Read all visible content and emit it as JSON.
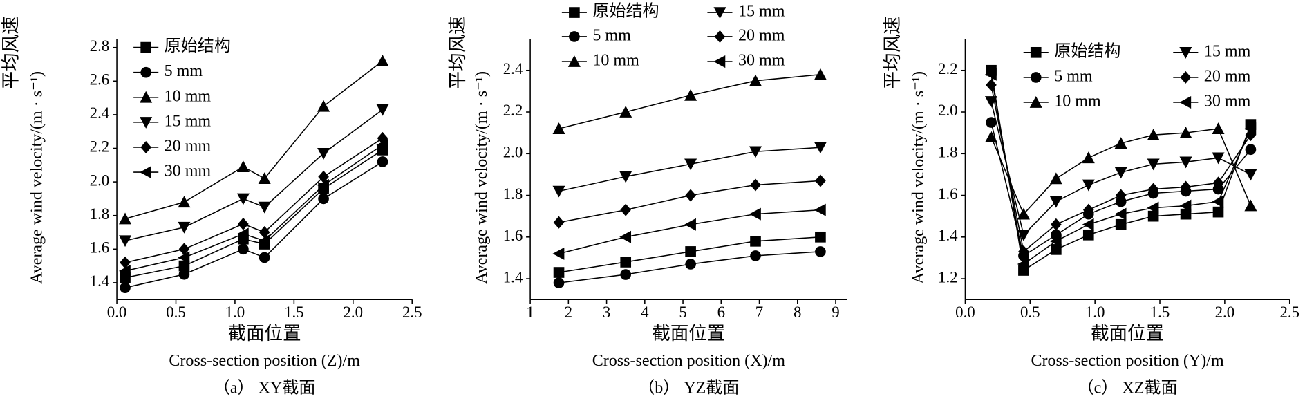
{
  "chart_data": [
    {
      "type": "line",
      "y_label_cn": "平均风速",
      "y_label": "Average wind velocity/(m · s⁻¹)",
      "x_label_cn": "截面位置",
      "x_label": "Cross-section position (Z)/m",
      "caption": "（a） XY截面",
      "x": [
        0.07,
        0.57,
        1.07,
        1.25,
        1.75,
        2.25
      ],
      "xlim": [
        0,
        2.5
      ],
      "xticks": [
        {
          "value": 0,
          "label": "0.0"
        },
        0.5,
        {
          "value": 1,
          "label": "1.0"
        },
        1.5,
        {
          "value": 2,
          "label": "2.0"
        },
        2.5
      ],
      "ylim": [
        1.3,
        2.85
      ],
      "yticks": [
        1.4,
        1.6,
        1.8,
        {
          "value": 2,
          "label": "2.0"
        },
        2.2,
        2.4,
        2.6,
        2.8
      ],
      "legend_columns": 1,
      "series": [
        {
          "name": "原始结构",
          "marker": "square",
          "color": "#000000",
          "values": [
            1.43,
            1.5,
            1.66,
            1.63,
            1.96,
            2.19
          ]
        },
        {
          "name": "5 mm",
          "marker": "circle",
          "color": "#000000",
          "values": [
            1.37,
            1.45,
            1.6,
            1.55,
            1.9,
            2.12
          ]
        },
        {
          "name": "10 mm",
          "marker": "triangle-up",
          "color": "#000000",
          "values": [
            1.78,
            1.88,
            2.09,
            2.02,
            2.45,
            2.72
          ]
        },
        {
          "name": "15 mm",
          "marker": "triangle-down",
          "color": "#000000",
          "values": [
            1.65,
            1.73,
            1.9,
            1.85,
            2.17,
            2.43
          ]
        },
        {
          "name": "20 mm",
          "marker": "diamond",
          "color": "#000000",
          "values": [
            1.52,
            1.6,
            1.75,
            1.7,
            2.03,
            2.26
          ]
        },
        {
          "name": "30 mm",
          "marker": "triangle-left",
          "color": "#000000",
          "values": [
            1.47,
            1.55,
            1.69,
            1.65,
            1.98,
            2.22
          ]
        }
      ]
    },
    {
      "type": "line",
      "y_label_cn": "平均风速",
      "y_label": "Average wind velocity/(m · s⁻¹)",
      "x_label_cn": "截面位置",
      "x_label": "Cross-section position (X)/m",
      "caption": "（b） YZ截面",
      "x": [
        1.75,
        3.5,
        5.2,
        6.9,
        8.6
      ],
      "xlim": [
        1,
        9.3
      ],
      "xticks": [
        1,
        2,
        3,
        4,
        5,
        6,
        7,
        8,
        9
      ],
      "ylim": [
        1.3,
        2.55
      ],
      "yticks": [
        1.4,
        1.6,
        1.8,
        {
          "value": 2,
          "label": "2.0"
        },
        2.2,
        2.4
      ],
      "legend_columns": 2,
      "series": [
        {
          "name": "原始结构",
          "marker": "square",
          "color": "#000000",
          "values": [
            1.43,
            1.48,
            1.53,
            1.58,
            1.6
          ]
        },
        {
          "name": "5 mm",
          "marker": "circle",
          "color": "#000000",
          "values": [
            1.38,
            1.42,
            1.47,
            1.51,
            1.53
          ]
        },
        {
          "name": "10 mm",
          "marker": "triangle-up",
          "color": "#000000",
          "values": [
            2.12,
            2.2,
            2.28,
            2.35,
            2.38
          ]
        },
        {
          "name": "15 mm",
          "marker": "triangle-down",
          "color": "#000000",
          "values": [
            1.82,
            1.89,
            1.95,
            2.01,
            2.03
          ]
        },
        {
          "name": "20 mm",
          "marker": "diamond",
          "color": "#000000",
          "values": [
            1.67,
            1.73,
            1.8,
            1.85,
            1.87
          ]
        },
        {
          "name": "30 mm",
          "marker": "triangle-left",
          "color": "#000000",
          "values": [
            1.52,
            1.6,
            1.66,
            1.71,
            1.73
          ]
        }
      ]
    },
    {
      "type": "line",
      "y_label_cn": "平均风速",
      "y_label": "Average wind velocity/(m · s⁻¹)",
      "x_label_cn": "截面位置",
      "x_label": "Cross-section position (Y)/m",
      "caption": "（c） XZ截面",
      "x": [
        0.2,
        0.45,
        0.7,
        0.95,
        1.2,
        1.45,
        1.7,
        1.95,
        2.2
      ],
      "xlim": [
        0,
        2.5
      ],
      "xticks": [
        {
          "value": 0,
          "label": "0.0"
        },
        0.5,
        {
          "value": 1,
          "label": "1.0"
        },
        1.5,
        {
          "value": 2,
          "label": "2.0"
        },
        2.5
      ],
      "ylim": [
        1.1,
        2.35
      ],
      "yticks": [
        1.2,
        1.4,
        1.6,
        1.8,
        {
          "value": 2,
          "label": "2.0"
        },
        2.2
      ],
      "legend_columns": 2,
      "series": [
        {
          "name": "原始结构",
          "marker": "square",
          "color": "#000000",
          "values": [
            2.2,
            1.24,
            1.34,
            1.41,
            1.46,
            1.5,
            1.51,
            1.52,
            1.94
          ]
        },
        {
          "name": "5 mm",
          "marker": "circle",
          "color": "#000000",
          "values": [
            1.95,
            1.31,
            1.41,
            1.51,
            1.57,
            1.61,
            1.62,
            1.63,
            1.82
          ]
        },
        {
          "name": "10 mm",
          "marker": "triangle-up",
          "color": "#000000",
          "values": [
            1.88,
            1.51,
            1.68,
            1.78,
            1.85,
            1.89,
            1.9,
            1.92,
            1.55
          ]
        },
        {
          "name": "15 mm",
          "marker": "triangle-down",
          "color": "#000000",
          "values": [
            2.05,
            1.41,
            1.57,
            1.65,
            1.71,
            1.75,
            1.76,
            1.78,
            1.7
          ]
        },
        {
          "name": "20 mm",
          "marker": "diamond",
          "color": "#000000",
          "values": [
            2.13,
            1.33,
            1.46,
            1.53,
            1.6,
            1.63,
            1.64,
            1.66,
            1.89
          ]
        },
        {
          "name": "30 mm",
          "marker": "triangle-left",
          "color": "#000000",
          "values": [
            2.18,
            1.27,
            1.38,
            1.46,
            1.51,
            1.54,
            1.55,
            1.57,
            1.92
          ]
        }
      ]
    }
  ]
}
